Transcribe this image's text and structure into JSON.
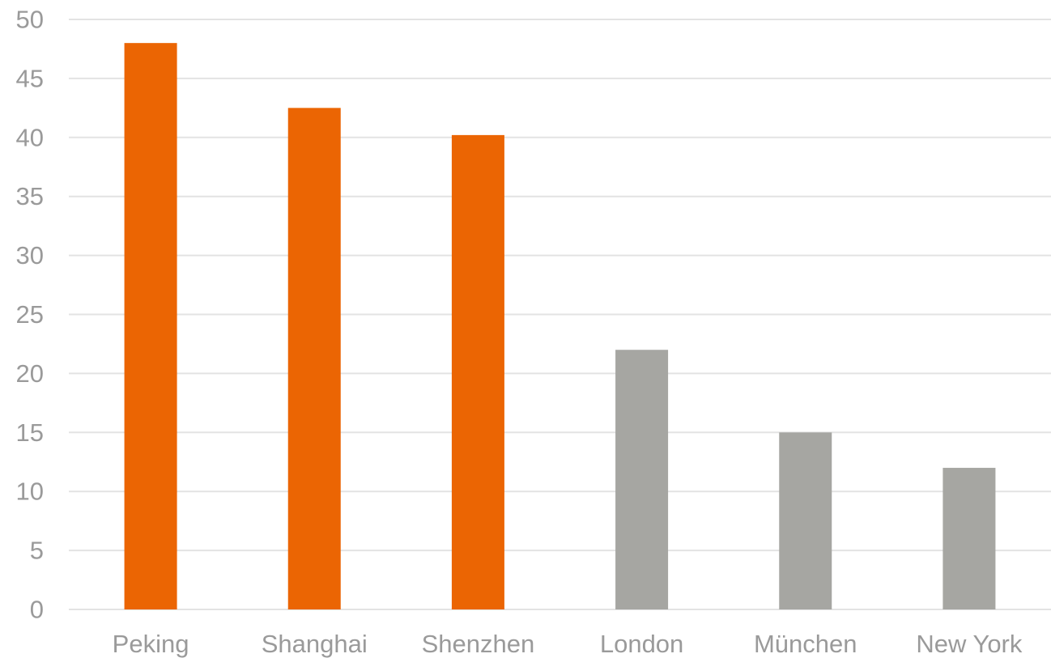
{
  "chart_data": {
    "type": "bar",
    "categories": [
      "Peking",
      "Shanghai",
      "Shenzhen",
      "London",
      "München",
      "New York"
    ],
    "values": [
      48,
      42.5,
      40.2,
      22,
      15,
      12
    ],
    "bar_colors": [
      "#eb6503",
      "#eb6503",
      "#eb6503",
      "#a6a6a2",
      "#a6a6a2",
      "#a6a6a2"
    ],
    "title": "",
    "xlabel": "",
    "ylabel": "",
    "ylim": [
      0,
      50
    ],
    "yticks": [
      0,
      5,
      10,
      15,
      20,
      25,
      30,
      35,
      40,
      45,
      50
    ],
    "grid": true,
    "legend": "none",
    "colors": {
      "highlight": "#eb6503",
      "neutral": "#a6a6a2",
      "grid": "#e3e3e3",
      "labels": "#9a9a9a"
    }
  }
}
